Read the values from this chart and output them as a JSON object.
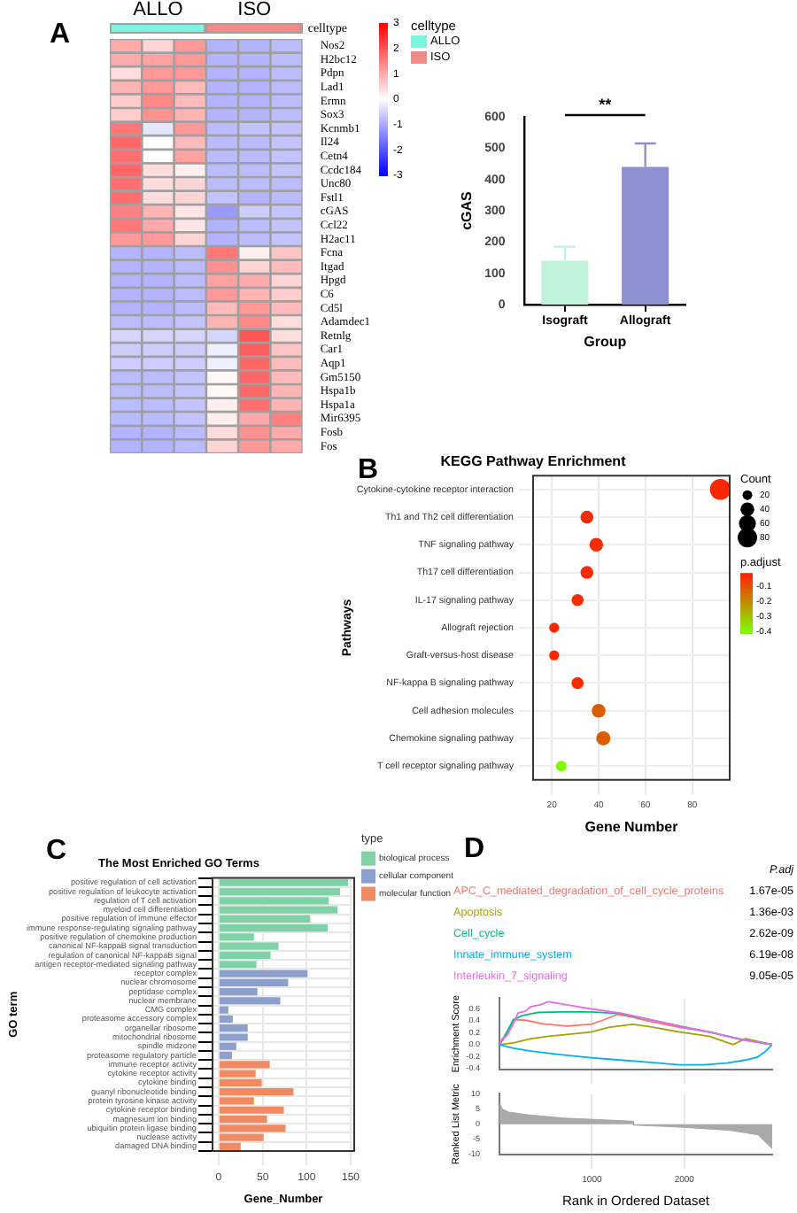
{
  "chart_data": [
    {
      "type": "heatmap",
      "annotations": [
        "A",
        "ALLO",
        "ISO"
      ],
      "colors": [
        "#7cf4e0",
        "#f08a87"
      ],
      "categories": [
        null,
        null,
        null,
        null,
        null,
        null
      ],
      "y_categories": [
        "Nos2",
        "H2bc12",
        "Pdpn",
        "Lad1",
        "Ermn",
        "Sox3",
        "Kcnmb1",
        "Il24",
        "Cetn4",
        "Ccdc184",
        "Unc80",
        "Fstl1",
        "cGAS",
        "Ccl22",
        "H2ac11",
        "Fcna",
        "Itgad",
        "Hpgd",
        "C6",
        "Cd5l",
        "Adamdec1",
        "Retnlg",
        "Car1",
        "Aqp1",
        "Gm5150",
        "Hspa1b",
        "Hspa1a",
        "Mir6395",
        "Fosb",
        "Fos"
      ],
      "cells": [
        [
          1.0,
          0.5,
          1.2,
          -0.9,
          -0.9,
          -0.8
        ],
        [
          1.0,
          1.1,
          1.2,
          -0.9,
          -0.9,
          -0.8
        ],
        [
          0.4,
          1.2,
          1.2,
          -0.9,
          -0.9,
          -0.8
        ],
        [
          0.9,
          1.2,
          0.8,
          -0.9,
          -0.9,
          -0.8
        ],
        [
          0.6,
          1.4,
          0.8,
          -0.9,
          -0.9,
          -0.8
        ],
        [
          0.6,
          1.3,
          0.9,
          -0.9,
          -0.9,
          -0.8
        ],
        [
          1.6,
          -0.3,
          1.2,
          -0.8,
          -0.7,
          -0.7
        ],
        [
          1.8,
          0,
          0.8,
          -0.8,
          -0.8,
          -0.7
        ],
        [
          1.7,
          0,
          1.1,
          -0.8,
          -0.8,
          -0.7
        ],
        [
          1.8,
          0.4,
          0.2,
          -0.8,
          -0.8,
          -0.7
        ],
        [
          1.7,
          0.4,
          0.5,
          -0.8,
          -0.8,
          -0.8
        ],
        [
          1.7,
          0.4,
          0.5,
          -0.7,
          -0.9,
          -0.8
        ],
        [
          1.5,
          0.9,
          0.3,
          -1.2,
          -0.6,
          -0.7
        ],
        [
          1.6,
          1.0,
          0.3,
          -0.9,
          -0.8,
          -0.7
        ],
        [
          1.2,
          1.2,
          0.5,
          -0.9,
          -0.8,
          -0.7
        ],
        [
          -0.9,
          -0.9,
          -0.8,
          1.6,
          0.2,
          0.7
        ],
        [
          -0.9,
          -0.9,
          -0.8,
          1.3,
          0.5,
          0.8
        ],
        [
          -0.9,
          -0.9,
          -0.8,
          1.1,
          1.0,
          0.5
        ],
        [
          -0.9,
          -0.9,
          -0.8,
          1.2,
          0.9,
          0.6
        ],
        [
          -0.9,
          -0.9,
          -0.8,
          0.8,
          1.2,
          0.8
        ],
        [
          -0.8,
          -0.8,
          -0.7,
          0.9,
          1.4,
          0.4
        ],
        [
          -0.5,
          -0.5,
          -0.5,
          -0.5,
          2.0,
          0.4
        ],
        [
          -0.6,
          -0.6,
          -0.6,
          -0.2,
          1.9,
          0.7
        ],
        [
          -0.6,
          -0.6,
          -0.6,
          -0.2,
          1.8,
          0.8
        ],
        [
          -0.8,
          -0.8,
          -0.7,
          0.1,
          1.8,
          0.8
        ],
        [
          -0.8,
          -0.8,
          -0.7,
          0.1,
          1.8,
          0.9
        ],
        [
          -0.8,
          -0.8,
          -0.7,
          0.2,
          1.7,
          0.9
        ],
        [
          -0.8,
          -0.8,
          -0.7,
          0.2,
          1.0,
          1.5
        ],
        [
          -0.9,
          -0.9,
          -0.8,
          0.4,
          1.3,
          1.0
        ],
        [
          -0.9,
          -0.9,
          -0.8,
          0.5,
          1.2,
          1.0
        ]
      ],
      "clim": [
        -3,
        3
      ],
      "cticks": [
        -3,
        -2,
        -1,
        0,
        1,
        2,
        3
      ],
      "legend_title": "celltype"
    },
    {
      "type": "bar",
      "categories": [
        "Isograft",
        "Allograft"
      ],
      "values": [
        140,
        440
      ],
      "colors": [
        "#bff3dc",
        "#8e91d1"
      ],
      "errors": [
        [
          140,
          185
        ],
        [
          440,
          515
        ]
      ],
      "ylim": [
        0,
        600
      ],
      "yticks": [
        0,
        100,
        200,
        300,
        400,
        500,
        600
      ],
      "xlabel": "Group",
      "ylabel": "cGAS",
      "annotations": [
        "**"
      ],
      "grid": false
    },
    {
      "type": "bubble",
      "orientation": "horizontal",
      "title": "KEGG Pathway Enrichment",
      "xlabel": "Gene Number",
      "ylabel": "Pathways",
      "annotations": [
        "B"
      ],
      "categories": [
        "Cytokine-cytokine receptor interaction",
        "Th1 and Th2 cell differentiation",
        "TNF signaling pathway",
        "Th17 cell differentiation",
        "IL-17 signaling pathway",
        "Allograft rejection",
        "Graft-versus-host disease",
        "NF-kappa B signaling pathway",
        "Cell adhesion molecules",
        "Chemokine signaling pathway",
        "T cell receptor signaling pathway"
      ],
      "values": [
        92,
        35,
        39,
        35,
        31,
        21,
        21,
        31,
        40,
        42,
        24
      ],
      "sizes": [
        92,
        35,
        39,
        35,
        31,
        21,
        21,
        31,
        40,
        42,
        24
      ],
      "size_legend": [
        20,
        40,
        60,
        80
      ],
      "cvalues": [
        -0.02,
        -0.03,
        -0.03,
        -0.03,
        -0.03,
        -0.02,
        -0.02,
        -0.03,
        -0.12,
        -0.12,
        -0.4
      ],
      "clim": [
        -0.41,
        -0.01
      ],
      "cticks": [
        -0.1,
        -0.2,
        -0.3,
        -0.4
      ],
      "clabel": "p.adjust",
      "legend_title": "Count",
      "xlim": [
        12,
        96
      ],
      "xticks": [
        20,
        40,
        60,
        80
      ],
      "grid": true
    },
    {
      "type": "bar",
      "orientation": "horizontal",
      "title": "The Most Enriched GO Terms",
      "xlabel": "Gene_Number",
      "ylabel": "GO term",
      "annotations": [
        "C"
      ],
      "legend": "right",
      "legend_title": "type",
      "categories": [
        "positive regulation of cell activation",
        "positive regulation of leukocyte activation",
        "regulation of T cell activation",
        "myeloid cell differentiation",
        "positive regulation of immune effector",
        "immune response-regulating signaling pathway",
        "positive regulation of chemokine production",
        "canonical NF-kappaB signal transduction",
        "regulation of canonical NF-kappaB signal",
        "antigen receptor-mediated signaling pathway",
        "receptor complex",
        "nuclear chromosome",
        "peptidase complex",
        "nuclear membrane",
        "CMG complex",
        "proteasome accessory complex",
        "organellar ribosome",
        "mitochondrial ribosome",
        "spindle midzone",
        "proteasome regulatory particle",
        "immune receptor activity",
        "cytokine receptor activity",
        "cytokine binding",
        "guanyl ribonucleotide binding",
        "protein tyrosine kinase activity",
        "cytokine receptor binding",
        "magnesium ion binding",
        "ubiquitin protein ligase binding",
        "nuclease activity",
        "damaged DNA binding"
      ],
      "series": [
        {
          "name": "biological process",
          "color": "#7fd1a7",
          "values": [
            147,
            138,
            125,
            135,
            104,
            124,
            40,
            68,
            59,
            43,
            null,
            null,
            null,
            null,
            null,
            null,
            null,
            null,
            null,
            null,
            null,
            null,
            null,
            null,
            null,
            null,
            null,
            null,
            null,
            null
          ]
        },
        {
          "name": "cellular component",
          "color": "#8da0cb",
          "values": [
            null,
            null,
            null,
            null,
            null,
            null,
            null,
            null,
            null,
            null,
            101,
            79,
            44,
            70,
            11,
            16,
            33,
            33,
            20,
            15,
            null,
            null,
            null,
            null,
            null,
            null,
            null,
            null,
            null,
            null
          ]
        },
        {
          "name": "molecular function",
          "color": "#f08a63",
          "values": [
            null,
            null,
            null,
            null,
            null,
            null,
            null,
            null,
            null,
            null,
            null,
            null,
            null,
            null,
            null,
            null,
            null,
            null,
            null,
            null,
            58,
            42,
            49,
            85,
            40,
            74,
            55,
            76,
            51,
            25
          ]
        }
      ],
      "xlim": [
        -7,
        154
      ],
      "xticks": [
        0,
        50,
        100,
        150
      ],
      "grid": true
    },
    {
      "type": "line",
      "ylabel": "Enrichment Score",
      "annotations": [
        "D",
        "1.67e-05",
        "1.36e-03",
        "2.62e-09",
        "6.19e-08",
        "9.05e-05"
      ],
      "legend": "top",
      "legend_title": "P.adj",
      "series": [
        {
          "name": "APC_C_mediated_degradation_of_cell_cycle_proteins",
          "color": "#f8766d",
          "x": [
            0,
            80,
            160,
            280,
            470,
            730,
            990,
            1120,
            1280,
            1440,
            1630,
            1950,
            2270,
            2590,
            2950
          ],
          "values": [
            0,
            0.17,
            0.42,
            0.41,
            0.35,
            0.31,
            0.34,
            0.41,
            0.51,
            0.46,
            0.39,
            0.29,
            0.21,
            0.09,
            0
          ]
        },
        {
          "name": "Apoptosis",
          "color": "#a3a500",
          "x": [
            0,
            150,
            340,
            530,
            730,
            990,
            1180,
            1440,
            1630,
            1950,
            2270,
            2530,
            2660,
            2950
          ],
          "values": [
            0,
            0.03,
            0.1,
            0.14,
            0.17,
            0.21,
            0.29,
            0.34,
            0.3,
            0.21,
            0.14,
            0,
            0.1,
            0
          ]
        },
        {
          "name": "Cell_cycle",
          "color": "#00bf7d",
          "x": [
            0,
            80,
            150,
            250,
            410,
            670,
            990,
            1310,
            1630,
            1950,
            2270,
            2590,
            2950
          ],
          "values": [
            0,
            0.21,
            0.42,
            0.49,
            0.54,
            0.55,
            0.55,
            0.52,
            0.42,
            0.31,
            0.21,
            0.1,
            0
          ]
        },
        {
          "name": "Innate_immune_system",
          "color": "#00b0f6",
          "x": [
            0,
            150,
            340,
            660,
            990,
            1310,
            1630,
            1950,
            2210,
            2460,
            2660,
            2790,
            2880,
            2950
          ],
          "values": [
            0,
            -0.06,
            -0.11,
            -0.17,
            -0.22,
            -0.26,
            -0.3,
            -0.34,
            -0.34,
            -0.31,
            -0.26,
            -0.21,
            -0.11,
            0
          ]
        },
        {
          "name": "Interleukin_7_signaling",
          "color": "#e76bf3",
          "x": [
            0,
            30,
            80,
            150,
            200,
            280,
            340,
            440,
            530,
            730,
            990,
            1310,
            1630,
            1950,
            2270,
            2600,
            2950
          ],
          "values": [
            0,
            0.1,
            0.15,
            0.35,
            0.53,
            0.56,
            0.64,
            0.67,
            0.72,
            0.67,
            0.6,
            0.53,
            0.42,
            0.31,
            0.21,
            0.09,
            0
          ]
        }
      ],
      "xlim": [
        0,
        2950
      ],
      "xticks": [
        1000,
        2000
      ],
      "ylim": [
        -0.42,
        0.78
      ],
      "yticks": [
        -0.4,
        -0.2,
        {
          "value": 0,
          "label": "0.0"
        },
        0.2,
        0.4,
        0.6
      ],
      "tick_labels": "y",
      "grid": "x"
    },
    {
      "type": "area",
      "xlabel": "Rank in Ordered Dataset",
      "ylabel": "Ranked List Metric",
      "series": [
        {
          "color": "#a9a9a9",
          "x": [
            0,
            30,
            100,
            330,
            700,
            1440,
            1450,
            2000,
            2500,
            2800,
            2950
          ],
          "values": [
            7,
            5,
            4,
            3,
            2,
            1,
            -0.3,
            -1,
            -2,
            -3.5,
            -8
          ]
        }
      ],
      "xlim": [
        0,
        2950
      ],
      "xticks": [
        1000,
        2000
      ],
      "ylim": [
        -10,
        10
      ],
      "yticks": [
        -10,
        -5,
        0,
        5,
        10
      ],
      "grid": "x"
    }
  ]
}
